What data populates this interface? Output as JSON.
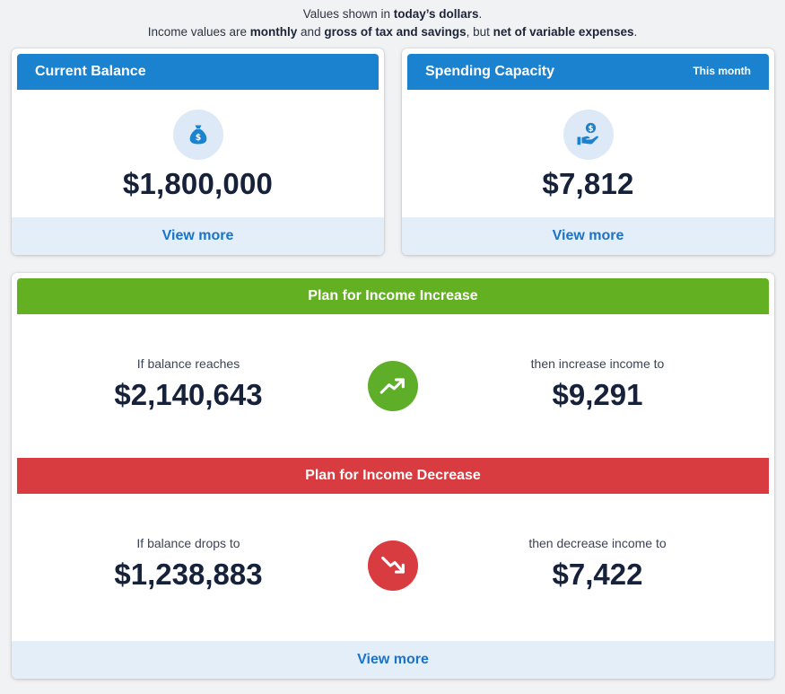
{
  "notes": {
    "line1_prefix": "Values shown in ",
    "line1_bold": "today’s dollars",
    "line1_suffix": ".",
    "line2_a": "Income values are ",
    "line2_b": "monthly",
    "line2_c": " and ",
    "line2_d": "gross of tax and savings",
    "line2_e": ", but ",
    "line2_f": "net of variable expenses",
    "line2_g": "."
  },
  "current_balance": {
    "title": "Current Balance",
    "icon": "money-bag-icon",
    "value": "$1,800,000",
    "footer": "View more"
  },
  "spending_capacity": {
    "title": "Spending Capacity",
    "period": "This month",
    "icon": "hand-coin-icon",
    "value": "$7,812",
    "footer": "View more"
  },
  "plan": {
    "increase": {
      "title": "Plan for Income Increase",
      "condition_label": "If balance reaches",
      "condition_value": "$2,140,643",
      "icon": "trend-up-icon",
      "action_label": "then increase income to",
      "action_value": "$9,291"
    },
    "decrease": {
      "title": "Plan for Income Decrease",
      "condition_label": "If balance drops to",
      "condition_value": "$1,238,883",
      "icon": "trend-down-icon",
      "action_label": "then decrease income to",
      "action_value": "$7,422"
    },
    "footer": "View more"
  },
  "colors": {
    "header_blue": "#1a82cf",
    "increase_green": "#63b022",
    "decrease_red": "#d93c40",
    "footer_bg": "#e4eef9",
    "link_blue": "#1a73c6"
  }
}
